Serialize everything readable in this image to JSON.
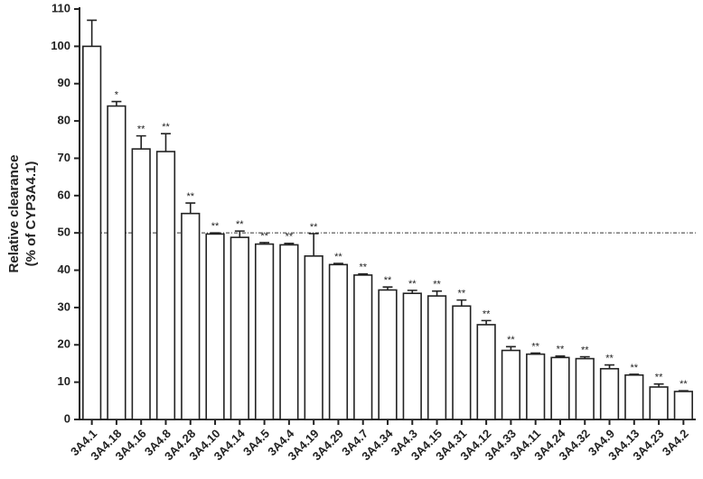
{
  "chart_data": {
    "type": "bar",
    "ylabel": [
      "Relative clearance",
      "(% of CYP3A4.1)"
    ],
    "categories": [
      "3A4.1",
      "3A4.18",
      "3A4.16",
      "3A4.8",
      "3A4.28",
      "3A4.10",
      "3A4.14",
      "3A4.5",
      "3A4.4",
      "3A4.19",
      "3A4.29",
      "3A4.7",
      "3A4.34",
      "3A4.3",
      "3A4.15",
      "3A4.31",
      "3A4.12",
      "3A4.33",
      "3A4.11",
      "3A4.24",
      "3A4.32",
      "3A4.9",
      "3A4.13",
      "3A4.23",
      "3A4.2"
    ],
    "values": [
      100,
      84,
      72.5,
      71.8,
      55.2,
      49.7,
      48.8,
      47,
      46.8,
      43.8,
      41.5,
      38.7,
      34.7,
      33.8,
      33.1,
      30.4,
      25.4,
      18.5,
      17.5,
      16.6,
      16.3,
      13.6,
      11.9,
      8.7,
      7.5
    ],
    "errors": [
      7,
      1.2,
      3.5,
      4.8,
      2.8,
      0.3,
      1.7,
      0.4,
      0.4,
      6,
      0.3,
      0.3,
      0.8,
      0.8,
      1.3,
      1.6,
      1.1,
      1,
      0.3,
      0.4,
      0.5,
      1,
      0.2,
      0.8,
      0.2
    ],
    "annotations": [
      null,
      "*",
      "**",
      "**",
      "**",
      "**",
      "**",
      "**",
      "**",
      "**",
      "**",
      "**",
      "**",
      "**",
      "**",
      "**",
      "**",
      "**",
      "**",
      "**",
      "**",
      "**",
      "**",
      "**",
      "**"
    ],
    "color": "#ffffff",
    "reference_line": 50,
    "ylim": [
      0,
      110
    ],
    "yticks": [
      0,
      10,
      20,
      30,
      40,
      50,
      60,
      70,
      80,
      90,
      100,
      110
    ]
  }
}
